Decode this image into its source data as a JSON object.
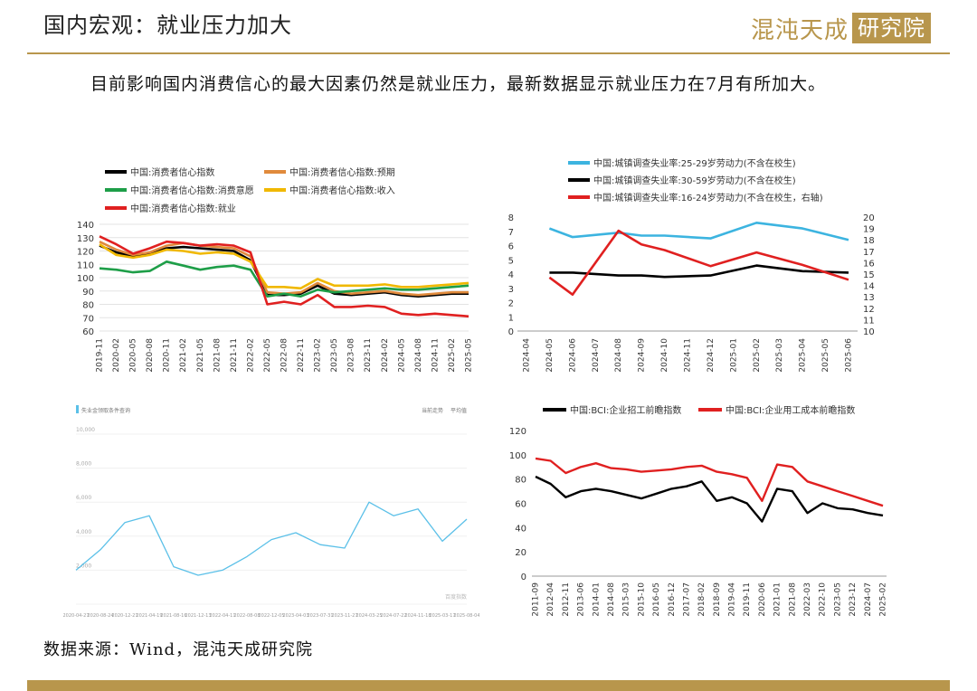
{
  "header": {
    "title": "国内宏观：就业压力加大",
    "logo_text": "混沌天成",
    "logo_box": "研究院"
  },
  "subtitle": "目前影响国内消费信心的最大因素仍然是就业压力，最新数据显示就业压力在7月有所加大。",
  "source": "数据来源：Wind，混沌天成研究院",
  "colors": {
    "gold": "#b8964c"
  },
  "chart_data": [
    {
      "type": "line",
      "title": "",
      "ylim": [
        60,
        140
      ],
      "yticks": [
        60,
        70,
        80,
        90,
        100,
        110,
        120,
        130,
        140
      ],
      "grid": true,
      "legend": "top",
      "x": [
        "2019-11",
        "2020-02",
        "2020-05",
        "2020-08",
        "2020-11",
        "2021-02",
        "2021-05",
        "2021-08",
        "2021-11",
        "2022-02",
        "2022-05",
        "2022-08",
        "2022-11",
        "2023-02",
        "2023-05",
        "2023-08",
        "2023-11",
        "2024-02",
        "2024-05",
        "2024-08",
        "2024-11",
        "2025-02",
        "2025-05"
      ],
      "series": [
        {
          "name": "中国:消费者信心指数",
          "color": "#000000",
          "values": [
            124,
            119,
            116,
            118,
            122,
            123,
            122,
            121,
            120,
            113,
            87,
            87,
            88,
            94,
            88,
            87,
            88,
            89,
            87,
            86,
            87,
            88,
            88
          ]
        },
        {
          "name": "中国:消费者信心指数:预期",
          "color": "#e08a3c",
          "values": [
            127,
            121,
            117,
            119,
            124,
            126,
            124,
            123,
            122,
            116,
            89,
            88,
            89,
            96,
            90,
            88,
            89,
            90,
            88,
            87,
            88,
            89,
            89
          ]
        },
        {
          "name": "中国:消费者信心指数:消费意愿",
          "color": "#1e9e48",
          "values": [
            107,
            106,
            104,
            105,
            112,
            109,
            106,
            108,
            109,
            106,
            86,
            88,
            86,
            91,
            89,
            90,
            91,
            92,
            91,
            91,
            92,
            93,
            94
          ]
        },
        {
          "name": "中国:消费者信心指数:收入",
          "color": "#f0b800",
          "values": [
            125,
            117,
            115,
            117,
            121,
            120,
            118,
            119,
            118,
            112,
            93,
            93,
            92,
            99,
            94,
            94,
            94,
            95,
            93,
            93,
            94,
            95,
            96
          ]
        },
        {
          "name": "中国:消费者信心指数:就业",
          "color": "#e02020",
          "values": [
            131,
            125,
            118,
            122,
            127,
            126,
            124,
            125,
            124,
            119,
            80,
            82,
            80,
            87,
            78,
            78,
            79,
            78,
            73,
            72,
            73,
            72,
            71
          ]
        }
      ]
    },
    {
      "type": "line",
      "title": "",
      "ylim_left": [
        0,
        8
      ],
      "yticks_left": [
        0,
        1,
        2,
        3,
        4,
        5,
        6,
        7,
        8
      ],
      "ylim_right": [
        10,
        20
      ],
      "yticks_right": [
        10,
        11,
        12,
        13,
        14,
        15,
        16,
        17,
        18,
        19,
        20
      ],
      "grid": false,
      "legend": "top",
      "x": [
        "2024-04",
        "2024-05",
        "2024-06",
        "2024-07",
        "2024-08",
        "2024-09",
        "2024-10",
        "2024-11",
        "2024-12",
        "2025-01",
        "2025-02",
        "2025-03",
        "2025-04",
        "2025-05",
        "2025-06"
      ],
      "series": [
        {
          "name": "中国:城镇调查失业率:25-29岁劳动力(不含在校生)",
          "color": "#3cb4e0",
          "axis": "left",
          "values": [
            null,
            7.2,
            6.6,
            null,
            6.9,
            6.7,
            6.7,
            null,
            6.5,
            null,
            7.6,
            null,
            7.2,
            null,
            6.4
          ]
        },
        {
          "name": "中国:城镇调查失业率:30-59岁劳动力(不含在校生)",
          "color": "#000000",
          "axis": "left",
          "values": [
            null,
            4.1,
            4.1,
            null,
            3.9,
            3.9,
            3.8,
            null,
            3.9,
            null,
            4.6,
            null,
            4.2,
            null,
            4.1
          ]
        },
        {
          "name": "中国:城镇调查失业率:16-24岁劳动力(不含在校生，右轴)",
          "color": "#e02020",
          "axis": "right",
          "values": [
            null,
            14.7,
            13.2,
            null,
            18.8,
            17.6,
            17.1,
            null,
            15.7,
            null,
            16.9,
            null,
            15.8,
            null,
            14.5
          ]
        }
      ]
    },
    {
      "type": "line",
      "title": "",
      "ylim": [
        0,
        10000
      ],
      "yticks": [
        0,
        2000,
        4000,
        6000,
        8000,
        10000
      ],
      "yticklabels": [
        "",
        "2,000",
        "4,000",
        "6,000",
        "8,000",
        "10,000"
      ],
      "grid": false,
      "legend": "top-left",
      "x": [
        "2020-04-27",
        "2020-08-24",
        "2020-12-21",
        "2021-04-19",
        "2021-08-16",
        "2021-12-13",
        "2022-04-11",
        "2022-08-08",
        "2022-12-05",
        "2023-04-03",
        "2023-07-31",
        "2023-11-27",
        "2024-03-25",
        "2024-07-22",
        "2024-11-18",
        "2025-03-17",
        "2025-08-04"
      ],
      "legend_label": "失业金领取条件查询",
      "legend_right": [
        "当前走势",
        "平均值"
      ],
      "watermark": "百度指数",
      "series": [
        {
          "name": "失业金领取条件查询",
          "color": "#5bc0e8",
          "values": [
            2000,
            3200,
            4800,
            5200,
            2200,
            1700,
            2000,
            2800,
            3800,
            4200,
            3500,
            3300,
            6000,
            5200,
            5600,
            3700,
            5000
          ]
        }
      ]
    },
    {
      "type": "line",
      "title": "",
      "ylim": [
        0,
        120
      ],
      "yticks": [
        0,
        20,
        40,
        60,
        80,
        100,
        120
      ],
      "grid": false,
      "legend": "top",
      "x": [
        "2011-09",
        "2012-04",
        "2012-11",
        "2013-06",
        "2014-01",
        "2014-08",
        "2015-03",
        "2015-10",
        "2016-05",
        "2016-12",
        "2017-07",
        "2018-02",
        "2018-09",
        "2019-04",
        "2019-11",
        "2020-06",
        "2021-01",
        "2021-08",
        "2022-03",
        "2022-10",
        "2023-05",
        "2023-12",
        "2024-07",
        "2025-02"
      ],
      "series": [
        {
          "name": "中国:BCI:企业招工前瞻指数",
          "color": "#000000",
          "values": [
            82,
            76,
            65,
            70,
            72,
            70,
            67,
            64,
            68,
            72,
            74,
            78,
            62,
            65,
            60,
            45,
            72,
            70,
            52,
            60,
            56,
            55,
            52,
            50
          ]
        },
        {
          "name": "中国:BCI:企业用工成本前瞻指数",
          "color": "#e02020",
          "values": [
            97,
            95,
            85,
            90,
            93,
            89,
            88,
            86,
            87,
            88,
            90,
            91,
            86,
            84,
            81,
            62,
            92,
            90,
            78,
            74,
            70,
            66,
            62,
            58
          ]
        }
      ]
    }
  ]
}
